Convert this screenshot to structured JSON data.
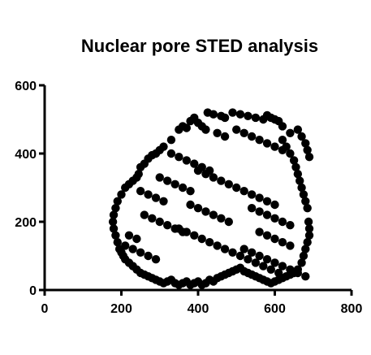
{
  "chart_data": {
    "type": "scatter",
    "title": "Nuclear pore STED analysis",
    "xlabel": "",
    "ylabel": "",
    "xlim": [
      0,
      800
    ],
    "ylim": [
      0,
      600
    ],
    "xticks": [
      0,
      200,
      400,
      600,
      800
    ],
    "yticks": [
      0,
      200,
      400,
      600
    ],
    "grid": false,
    "marker_color": "#000000",
    "x": [
      425,
      440,
      460,
      470,
      490,
      510,
      530,
      550,
      570,
      580,
      590,
      600,
      610,
      620,
      380,
      390,
      400,
      410,
      420,
      370,
      360,
      350,
      330,
      310,
      300,
      290,
      280,
      270,
      260,
      250,
      245,
      240,
      230,
      220,
      210,
      200,
      190,
      185,
      180,
      178,
      180,
      185,
      190,
      195,
      200,
      205,
      210,
      220,
      230,
      240,
      250,
      260,
      270,
      280,
      290,
      300,
      310,
      320,
      330,
      340,
      350,
      360,
      370,
      380,
      390,
      400,
      410,
      420,
      430,
      440,
      450,
      460,
      470,
      480,
      490,
      500,
      510,
      520,
      530,
      540,
      550,
      560,
      570,
      580,
      590,
      600,
      610,
      620,
      630,
      640,
      650,
      660,
      670,
      675,
      680,
      685,
      690,
      690,
      688,
      685,
      680,
      675,
      670,
      665,
      660,
      655,
      650,
      640,
      630,
      620,
      640,
      660,
      670,
      680,
      685,
      690,
      500,
      520,
      540,
      560,
      580,
      600,
      620,
      450,
      470,
      330,
      350,
      370,
      390,
      410,
      430,
      300,
      320,
      340,
      360,
      380,
      250,
      270,
      290,
      310,
      400,
      420,
      440,
      460,
      480,
      500,
      520,
      540,
      560,
      580,
      600,
      380,
      400,
      420,
      440,
      460,
      480,
      350,
      370,
      390,
      410,
      430,
      450,
      470,
      490,
      510,
      530,
      550,
      570,
      590,
      610,
      260,
      280,
      300,
      320,
      340,
      360,
      220,
      240,
      210,
      230,
      250,
      270,
      290,
      540,
      560,
      580,
      600,
      620,
      640,
      560,
      580,
      600,
      620,
      640,
      520,
      540,
      560,
      580,
      600,
      620,
      640,
      660,
      680
    ],
    "y": [
      520,
      515,
      510,
      505,
      520,
      515,
      510,
      505,
      500,
      512,
      505,
      500,
      495,
      480,
      495,
      505,
      490,
      480,
      470,
      475,
      480,
      470,
      440,
      420,
      410,
      400,
      395,
      385,
      370,
      360,
      340,
      330,
      320,
      310,
      300,
      280,
      260,
      240,
      220,
      200,
      180,
      160,
      140,
      120,
      110,
      100,
      90,
      80,
      70,
      60,
      50,
      45,
      40,
      35,
      30,
      25,
      20,
      25,
      30,
      20,
      15,
      20,
      25,
      15,
      20,
      25,
      15,
      20,
      30,
      25,
      35,
      40,
      45,
      50,
      55,
      60,
      65,
      55,
      50,
      45,
      40,
      35,
      30,
      25,
      20,
      25,
      30,
      35,
      40,
      45,
      50,
      60,
      80,
      100,
      120,
      140,
      160,
      180,
      200,
      240,
      260,
      280,
      300,
      320,
      340,
      360,
      380,
      400,
      420,
      440,
      460,
      470,
      450,
      430,
      410,
      390,
      470,
      460,
      450,
      440,
      430,
      420,
      410,
      460,
      450,
      400,
      390,
      380,
      370,
      360,
      350,
      330,
      320,
      310,
      300,
      290,
      290,
      280,
      270,
      260,
      350,
      340,
      330,
      320,
      310,
      300,
      290,
      280,
      270,
      260,
      250,
      250,
      240,
      230,
      220,
      210,
      200,
      180,
      170,
      160,
      150,
      140,
      130,
      120,
      110,
      100,
      90,
      80,
      70,
      60,
      50,
      220,
      210,
      200,
      190,
      180,
      170,
      160,
      150,
      130,
      120,
      110,
      100,
      90,
      240,
      230,
      220,
      210,
      200,
      190,
      170,
      160,
      150,
      140,
      130,
      120,
      110,
      100,
      90,
      80,
      70,
      60,
      50,
      40
    ]
  }
}
